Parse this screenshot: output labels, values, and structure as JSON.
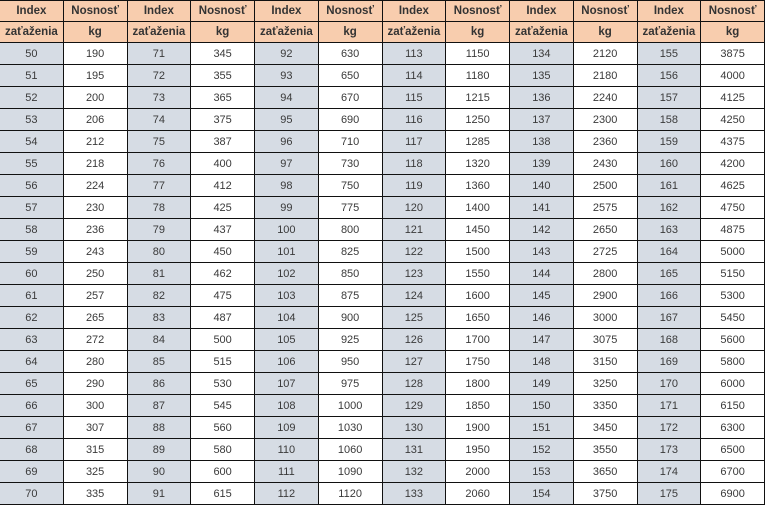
{
  "header": {
    "index_line1": "Index",
    "index_line2": "zaťaženia",
    "load_line1": "Nosnosť",
    "load_line2": "kg"
  },
  "colors": {
    "header_bg": "#f8cdae",
    "index_bg": "#d6dce4",
    "load_bg": "#ffffff"
  },
  "groups": [
    {
      "index": [
        "50",
        "51",
        "52",
        "53",
        "54",
        "55",
        "56",
        "57",
        "58",
        "59",
        "60",
        "61",
        "62",
        "63",
        "64",
        "65",
        "66",
        "67",
        "68",
        "69",
        "70"
      ],
      "load": [
        "190",
        "195",
        "200",
        "206",
        "212",
        "218",
        "224",
        "230",
        "236",
        "243",
        "250",
        "257",
        "265",
        "272",
        "280",
        "290",
        "300",
        "307",
        "315",
        "325",
        "335"
      ]
    },
    {
      "index": [
        "71",
        "72",
        "73",
        "74",
        "75",
        "76",
        "77",
        "78",
        "79",
        "80",
        "81",
        "82",
        "83",
        "84",
        "85",
        "86",
        "87",
        "88",
        "89",
        "90",
        "91"
      ],
      "load": [
        "345",
        "355",
        "365",
        "375",
        "387",
        "400",
        "412",
        "425",
        "437",
        "450",
        "462",
        "475",
        "487",
        "500",
        "515",
        "530",
        "545",
        "560",
        "580",
        "600",
        "615"
      ]
    },
    {
      "index": [
        "92",
        "93",
        "94",
        "95",
        "96",
        "97",
        "98",
        "99",
        "100",
        "101",
        "102",
        "103",
        "104",
        "105",
        "106",
        "107",
        "108",
        "109",
        "110",
        "111",
        "112"
      ],
      "load": [
        "630",
        "650",
        "670",
        "690",
        "710",
        "730",
        "750",
        "775",
        "800",
        "825",
        "850",
        "875",
        "900",
        "925",
        "950",
        "975",
        "1000",
        "1030",
        "1060",
        "1090",
        "1120"
      ]
    },
    {
      "index": [
        "113",
        "114",
        "115",
        "116",
        "117",
        "118",
        "119",
        "120",
        "121",
        "122",
        "123",
        "124",
        "125",
        "126",
        "127",
        "128",
        "129",
        "130",
        "131",
        "132",
        "133"
      ],
      "load": [
        "1150",
        "1180",
        "1215",
        "1250",
        "1285",
        "1320",
        "1360",
        "1400",
        "1450",
        "1500",
        "1550",
        "1600",
        "1650",
        "1700",
        "1750",
        "1800",
        "1850",
        "1900",
        "1950",
        "2000",
        "2060"
      ]
    },
    {
      "index": [
        "134",
        "135",
        "136",
        "137",
        "138",
        "139",
        "140",
        "141",
        "142",
        "143",
        "144",
        "145",
        "146",
        "147",
        "148",
        "149",
        "150",
        "151",
        "152",
        "153",
        "154"
      ],
      "load": [
        "2120",
        "2180",
        "2240",
        "2300",
        "2360",
        "2430",
        "2500",
        "2575",
        "2650",
        "2725",
        "2800",
        "2900",
        "3000",
        "3075",
        "3150",
        "3250",
        "3350",
        "3450",
        "3550",
        "3650",
        "3750"
      ]
    },
    {
      "index": [
        "155",
        "156",
        "157",
        "158",
        "159",
        "160",
        "161",
        "162",
        "163",
        "164",
        "165",
        "166",
        "167",
        "168",
        "169",
        "170",
        "171",
        "172",
        "173",
        "174",
        "175"
      ],
      "load": [
        "3875",
        "4000",
        "4125",
        "4250",
        "4375",
        "4200",
        "4625",
        "4750",
        "4875",
        "5000",
        "5150",
        "5300",
        "5450",
        "5600",
        "5800",
        "6000",
        "6150",
        "6300",
        "6500",
        "6700",
        "6900"
      ]
    }
  ]
}
